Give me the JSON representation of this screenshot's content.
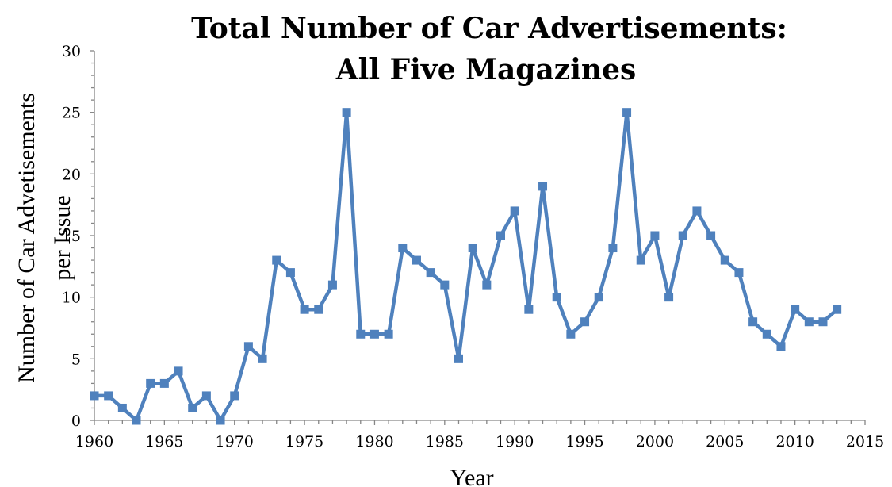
{
  "chart_data": {
    "type": "line",
    "title_lines": [
      "Total Number of Car Advertisements:",
      "All Five Magazines"
    ],
    "xlabel": "Year",
    "ylabel_lines": [
      "Number of Car Advetisements",
      "per Issue"
    ],
    "xlim": [
      1960,
      2015
    ],
    "ylim": [
      0,
      30
    ],
    "x_ticks": [
      1960,
      1965,
      1970,
      1975,
      1980,
      1985,
      1990,
      1995,
      2000,
      2005,
      2010,
      2015
    ],
    "y_ticks": [
      0,
      5,
      10,
      15,
      20,
      25,
      30
    ],
    "grid": false,
    "legend": "none",
    "series": [
      {
        "color": "#4f81bd",
        "marker": "square",
        "x": [
          1960,
          1961,
          1962,
          1963,
          1964,
          1965,
          1966,
          1967,
          1968,
          1969,
          1970,
          1971,
          1972,
          1973,
          1974,
          1975,
          1976,
          1977,
          1978,
          1979,
          1980,
          1981,
          1982,
          1983,
          1984,
          1985,
          1986,
          1987,
          1988,
          1989,
          1990,
          1991,
          1992,
          1993,
          1994,
          1995,
          1996,
          1997,
          1998,
          1999,
          2000,
          2001,
          2002,
          2003,
          2004,
          2005,
          2006,
          2007,
          2008,
          2009,
          2010,
          2011,
          2012,
          2013
        ],
        "y": [
          2,
          2,
          1,
          0,
          3,
          3,
          4,
          1,
          2,
          0,
          2,
          6,
          5,
          13,
          12,
          9,
          9,
          11,
          25,
          7,
          7,
          7,
          14,
          13,
          12,
          11,
          5,
          14,
          11,
          15,
          17,
          9,
          19,
          10,
          7,
          8,
          10,
          14,
          25,
          13,
          15,
          10,
          15,
          17,
          15,
          13,
          12,
          8,
          7,
          6,
          9,
          8,
          8,
          9
        ]
      }
    ]
  }
}
